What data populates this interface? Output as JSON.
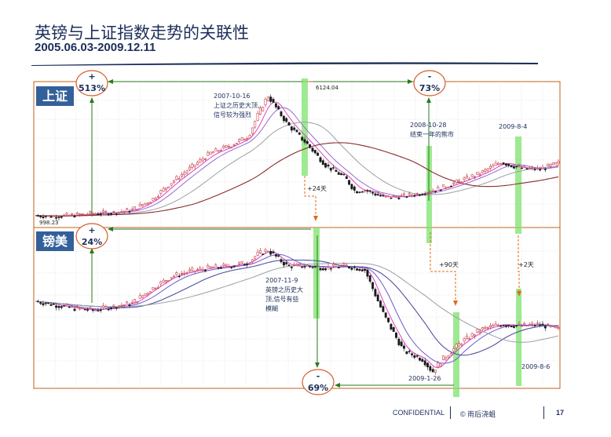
{
  "slide": {
    "title": "英镑与上证指数走势的关联性",
    "subtitle": "2005.06.03-2009.12.11",
    "footer_confidential": "CONFIDENTIAL",
    "footer_copyright": "© 雨后浇蛆",
    "page_number": "17"
  },
  "colors": {
    "title": "#1c2f5a",
    "panel_border": "#c0601a",
    "label_box": "#34609a",
    "highlight": "#7de36e",
    "arrow_green": "#2a7a1e",
    "arrow_orange": "#e06a1a",
    "circle": "#d65b2a",
    "candle_up": "#c0212f",
    "candle_down": "#1a1a1a"
  },
  "chart_data": [
    {
      "type": "line",
      "panel_label": "上证",
      "peak_label": "6124.04",
      "start_label": "998.23",
      "change_up": {
        "sign": "+",
        "value": "513%"
      },
      "change_down": {
        "sign": "-",
        "value": "73%"
      },
      "annotations": [
        {
          "lines": [
            "2007-10-16",
            "上证之历史大顶,",
            "信号较为强烈"
          ]
        },
        {
          "lines": [
            "2008-10-28",
            "结束一年的熊市"
          ]
        },
        {
          "lines": [
            "2009-8-4"
          ]
        }
      ],
      "lag_labels": [
        "+24天"
      ],
      "x_index": [
        0,
        10,
        20,
        30,
        40,
        50,
        60,
        70,
        80,
        90,
        100,
        110,
        115,
        120,
        130,
        140,
        150,
        160,
        165,
        170,
        180,
        190,
        200,
        210,
        220,
        230,
        240,
        250,
        260,
        270
      ],
      "close": [
        1060,
        1030,
        1080,
        1150,
        1180,
        1300,
        1700,
        2400,
        3000,
        3600,
        3900,
        4300,
        5200,
        5954,
        4800,
        4000,
        3100,
        2600,
        2050,
        2100,
        1800,
        1850,
        1990,
        2200,
        2500,
        2800,
        3250,
        3000,
        2950,
        3200
      ]
    },
    {
      "type": "line",
      "panel_label": "镑美",
      "change_up": {
        "sign": "+",
        "value": "24%"
      },
      "change_down": {
        "sign": "-",
        "value": "69%"
      },
      "annotations": [
        {
          "lines": [
            "2007-11-9",
            "英镑之历史大",
            "顶,信号有些",
            "模糊"
          ]
        },
        {
          "lines": [
            "2009-1-26"
          ]
        },
        {
          "lines": [
            "2009-8-6"
          ]
        }
      ],
      "lag_labels": [
        "+90天",
        "+2天"
      ],
      "x_index": [
        0,
        10,
        20,
        30,
        40,
        50,
        60,
        70,
        80,
        90,
        100,
        110,
        115,
        120,
        130,
        140,
        150,
        160,
        170,
        180,
        190,
        200,
        205,
        210,
        220,
        230,
        240,
        250,
        260,
        270
      ],
      "close": [
        1.78,
        1.76,
        1.74,
        1.73,
        1.75,
        1.77,
        1.85,
        1.92,
        1.95,
        1.97,
        1.98,
        2.0,
        2.05,
        2.07,
        1.98,
        1.98,
        1.97,
        1.98,
        1.96,
        1.7,
        1.5,
        1.45,
        1.38,
        1.45,
        1.55,
        1.62,
        1.65,
        1.64,
        1.65,
        1.62
      ]
    }
  ]
}
